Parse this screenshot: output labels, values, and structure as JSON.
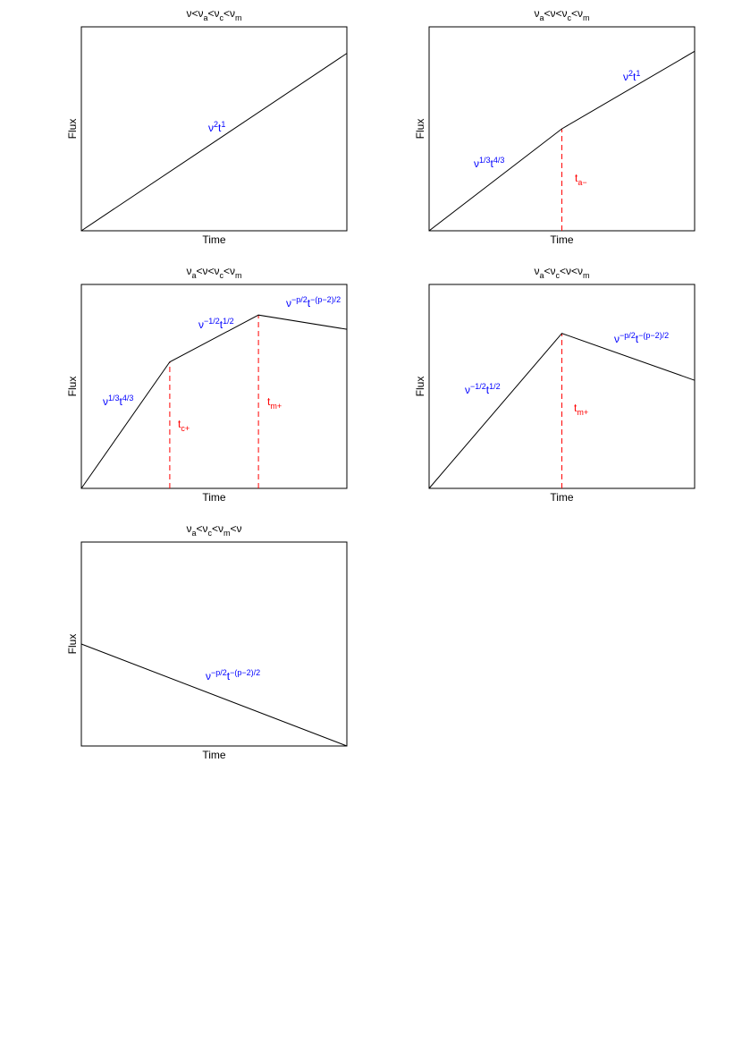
{
  "chart_data": [
    {
      "type": "line",
      "title": [
        {
          "text": "ν<ν"
        },
        {
          "sub": "a"
        },
        {
          "text": "<ν"
        },
        {
          "sub": "c"
        },
        {
          "text": "<ν"
        },
        {
          "sub": "m"
        }
      ],
      "xlabel": "Time",
      "ylabel": "Flux",
      "x": [
        0,
        1
      ],
      "values": [
        0,
        0.87
      ],
      "xlim": [
        0,
        1
      ],
      "ylim": [
        0,
        1
      ],
      "color": "#000000",
      "annotations": [
        [
          {
            "text": "ν"
          },
          {
            "sup": "2"
          },
          {
            "text": "t"
          },
          {
            "sup": "1"
          }
        ]
      ],
      "annotation_color": "#0000ff",
      "breaks": [],
      "break_labels": [],
      "break_color": "#ff0000"
    },
    {
      "type": "line",
      "title": [
        {
          "text": "ν"
        },
        {
          "sub": "a"
        },
        {
          "text": "<ν<ν"
        },
        {
          "sub": "c"
        },
        {
          "text": "<ν"
        },
        {
          "sub": "m"
        }
      ],
      "xlabel": "Time",
      "ylabel": "Flux",
      "x": [
        0,
        0.5,
        1
      ],
      "values": [
        0,
        0.5,
        0.88
      ],
      "xlim": [
        0,
        1
      ],
      "ylim": [
        0,
        1
      ],
      "color": "#000000",
      "annotations": [
        [
          {
            "text": "ν"
          },
          {
            "sup": "1/3"
          },
          {
            "text": "t"
          },
          {
            "sup": "4/3"
          }
        ],
        [
          {
            "text": "ν"
          },
          {
            "sup": "2"
          },
          {
            "text": "t"
          },
          {
            "sup": "1"
          }
        ]
      ],
      "annotation_color": "#0000ff",
      "breaks": [
        0.5
      ],
      "break_labels": [
        [
          {
            "text": "t"
          },
          {
            "sub": "a−"
          }
        ]
      ],
      "break_color": "#ff0000"
    },
    {
      "type": "line",
      "title": [
        {
          "text": "ν"
        },
        {
          "sub": "a"
        },
        {
          "text": "<ν<ν"
        },
        {
          "sub": "c"
        },
        {
          "text": "<ν"
        },
        {
          "sub": "m"
        }
      ],
      "xlabel": "Time",
      "ylabel": "Flux",
      "x": [
        0,
        0.333,
        0.667,
        1
      ],
      "values": [
        0,
        0.62,
        0.85,
        0.78
      ],
      "xlim": [
        0,
        1
      ],
      "ylim": [
        0,
        1
      ],
      "color": "#000000",
      "annotations": [
        [
          {
            "text": "ν"
          },
          {
            "sup": "1/3"
          },
          {
            "text": "t"
          },
          {
            "sup": "4/3"
          }
        ],
        [
          {
            "text": "ν"
          },
          {
            "sup": "−1/2"
          },
          {
            "text": "t"
          },
          {
            "sup": "1/2"
          }
        ],
        [
          {
            "text": "ν"
          },
          {
            "sup": "−p/2"
          },
          {
            "text": "t"
          },
          {
            "sup": "−(p−2)/2"
          }
        ]
      ],
      "annotation_color": "#0000ff",
      "breaks": [
        0.333,
        0.667
      ],
      "break_labels": [
        [
          {
            "text": "t"
          },
          {
            "sub": "c+"
          }
        ],
        [
          {
            "text": "t"
          },
          {
            "sub": "m+"
          }
        ]
      ],
      "break_color": "#ff0000"
    },
    {
      "type": "line",
      "title": [
        {
          "text": "ν"
        },
        {
          "sub": "a"
        },
        {
          "text": "<ν"
        },
        {
          "sub": "c"
        },
        {
          "text": "<ν<ν"
        },
        {
          "sub": "m"
        }
      ],
      "xlabel": "Time",
      "ylabel": "Flux",
      "x": [
        0,
        0.5,
        1
      ],
      "values": [
        0,
        0.76,
        0.53
      ],
      "xlim": [
        0,
        1
      ],
      "ylim": [
        0,
        1
      ],
      "color": "#000000",
      "annotations": [
        [
          {
            "text": "ν"
          },
          {
            "sup": "−1/2"
          },
          {
            "text": "t"
          },
          {
            "sup": "1/2"
          }
        ],
        [
          {
            "text": "ν"
          },
          {
            "sup": "−p/2"
          },
          {
            "text": "t"
          },
          {
            "sup": "−(p−2)/2"
          }
        ]
      ],
      "annotation_color": "#0000ff",
      "breaks": [
        0.5
      ],
      "break_labels": [
        [
          {
            "text": "t"
          },
          {
            "sub": "m+"
          }
        ]
      ],
      "break_color": "#ff0000"
    },
    {
      "type": "line",
      "title": [
        {
          "text": "ν"
        },
        {
          "sub": "a"
        },
        {
          "text": "<ν"
        },
        {
          "sub": "c"
        },
        {
          "text": "<ν"
        },
        {
          "sub": "m"
        },
        {
          "text": "<ν"
        }
      ],
      "xlabel": "Time",
      "ylabel": "Flux",
      "x": [
        0,
        1
      ],
      "values": [
        0.5,
        0
      ],
      "xlim": [
        0,
        1
      ],
      "ylim": [
        0,
        1
      ],
      "color": "#000000",
      "annotations": [
        [
          {
            "text": "ν"
          },
          {
            "sup": "−p/2"
          },
          {
            "text": "t"
          },
          {
            "sup": "−(p−2)/2"
          }
        ]
      ],
      "annotation_color": "#0000ff",
      "breaks": [],
      "break_labels": [],
      "break_color": "#ff0000"
    }
  ]
}
